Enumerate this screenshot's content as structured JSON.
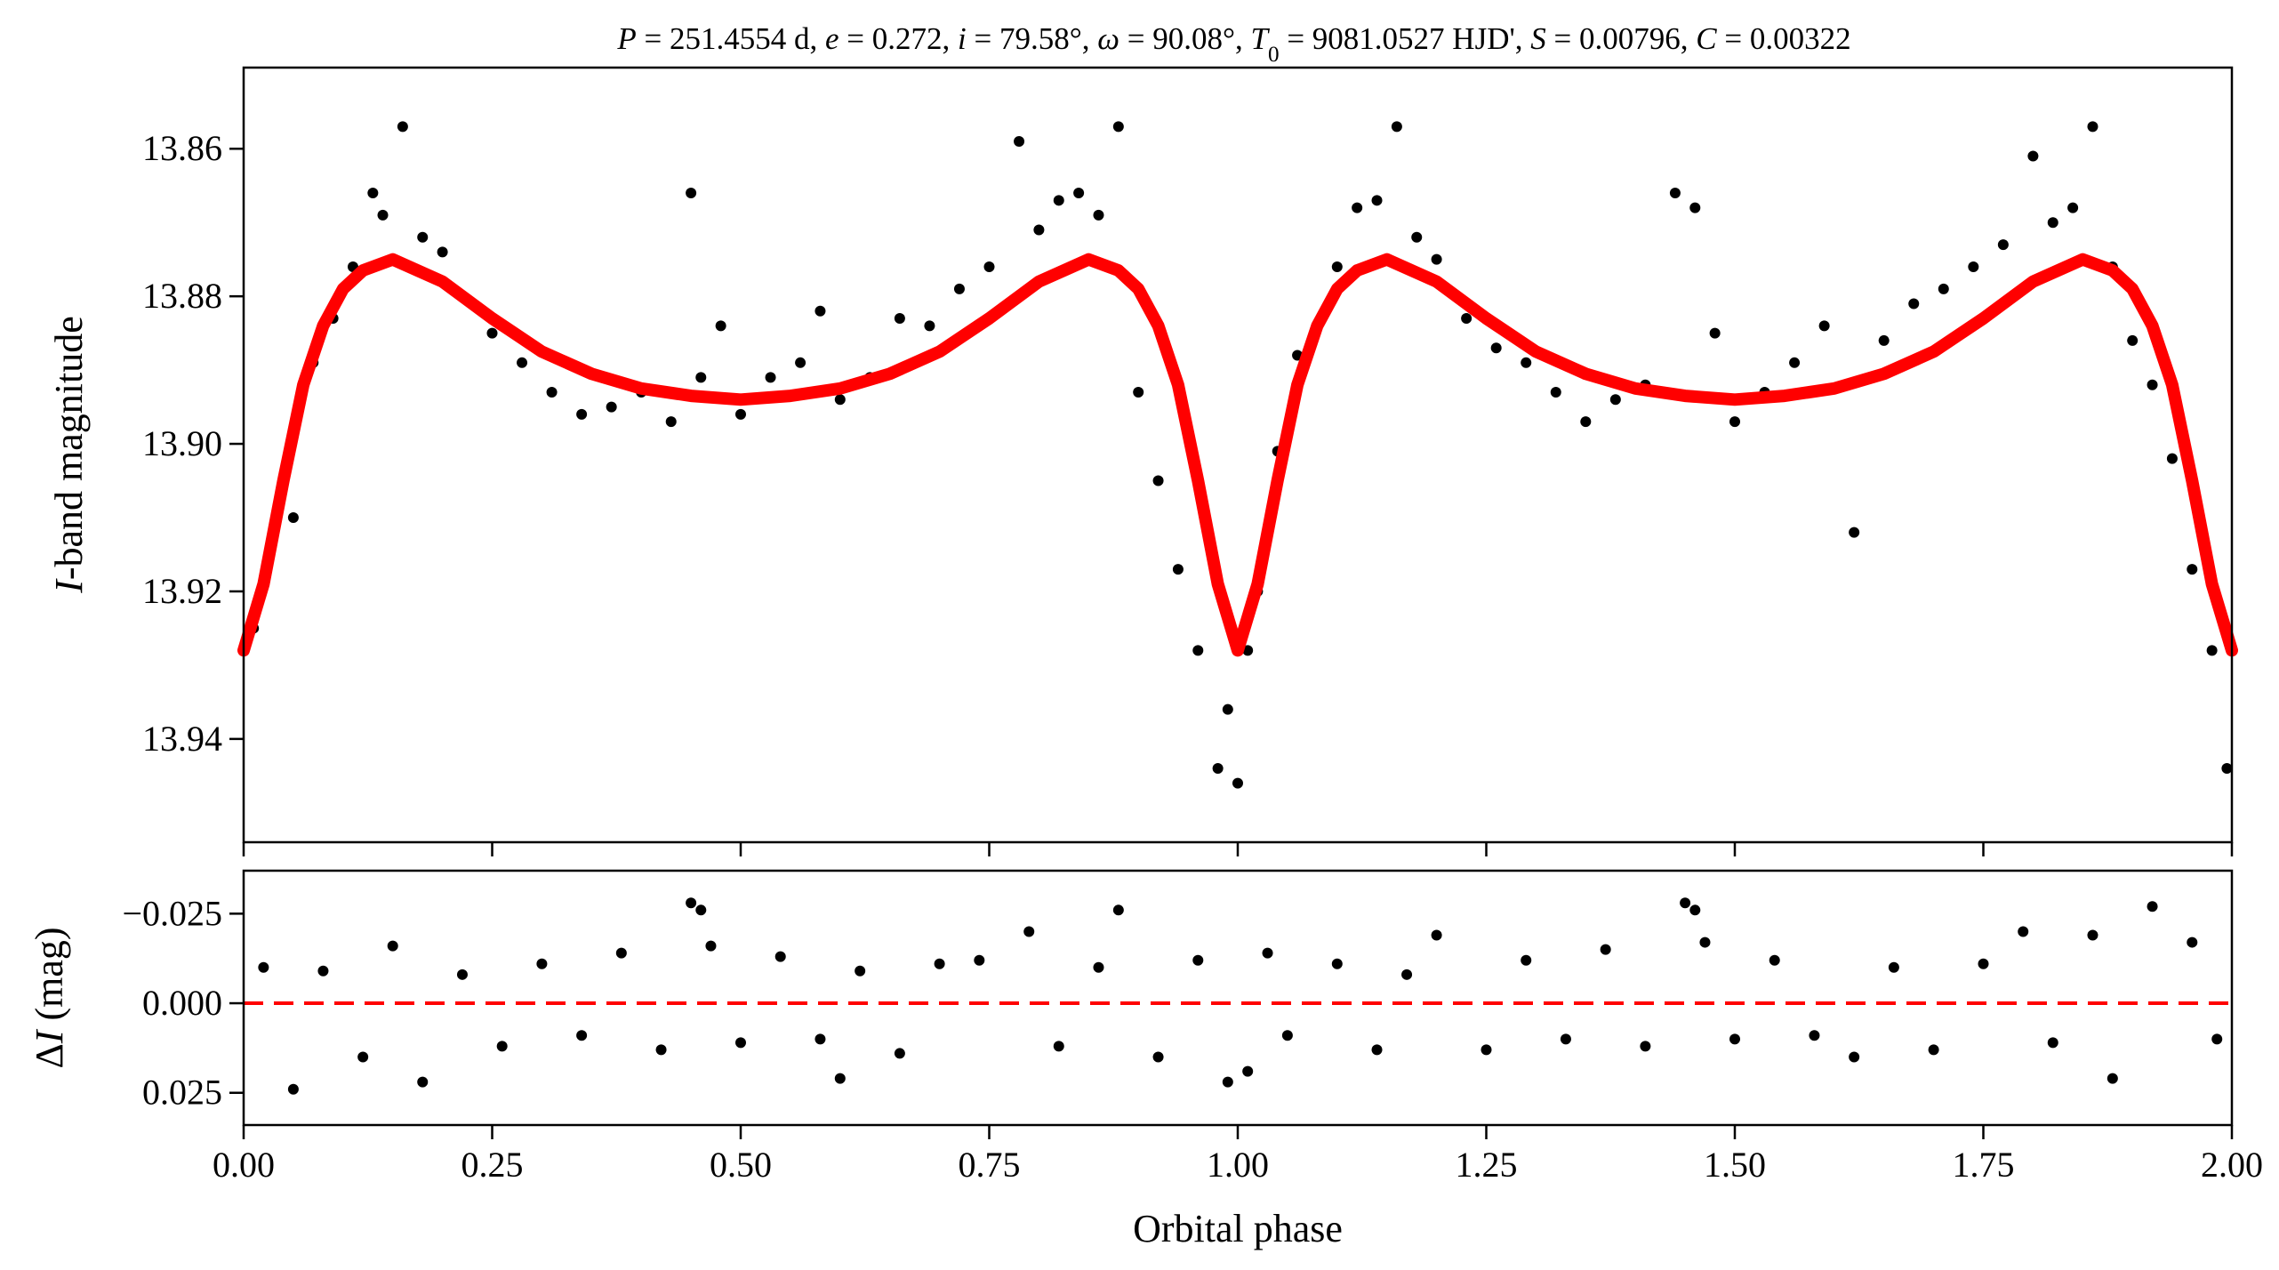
{
  "chart_data": [
    {
      "panel": "light-curve",
      "type": "scatter",
      "title": "P = 251.4554 d, e = 0.272, i = 79.58°, ω = 90.08°, T0 = 9081.0527 HJD', S = 0.00796, C = 0.00322",
      "title_parts": [
        {
          "text": "P",
          "style": "italic"
        },
        {
          "text": " = 251.4554 d, ",
          "style": "normal"
        },
        {
          "text": "e",
          "style": "italic"
        },
        {
          "text": " = 0.272, ",
          "style": "normal"
        },
        {
          "text": "i",
          "style": "italic"
        },
        {
          "text": " = 79.58°, ",
          "style": "normal"
        },
        {
          "text": "ω",
          "style": "italic"
        },
        {
          "text": " = 90.08°, ",
          "style": "normal"
        },
        {
          "text": "T",
          "style": "italic"
        },
        {
          "text": "0",
          "style": "sub"
        },
        {
          "text": " = 9081.0527 HJD', ",
          "style": "normal"
        },
        {
          "text": "S",
          "style": "italic"
        },
        {
          "text": " = 0.00796, ",
          "style": "normal"
        },
        {
          "text": "C",
          "style": "italic"
        },
        {
          "text": " = 0.00322",
          "style": "normal"
        }
      ],
      "ylabel": "I-band magnitude",
      "ylabel_parts": [
        {
          "text": "I",
          "style": "italic"
        },
        {
          "text": "-band magnitude",
          "style": "normal"
        }
      ],
      "xlabel": "",
      "xlim": [
        0.0,
        2.0
      ],
      "ylim": [
        13.954,
        13.849
      ],
      "y_inverted": true,
      "yticks": [
        13.86,
        13.88,
        13.9,
        13.92,
        13.94
      ],
      "ytick_labels": [
        "13.86",
        "13.88",
        "13.90",
        "13.92",
        "13.94"
      ],
      "grid": false,
      "model": {
        "color": "#ff0000",
        "x": [
          0.0,
          0.02,
          0.04,
          0.06,
          0.08,
          0.1,
          0.12,
          0.15,
          0.2,
          0.25,
          0.3,
          0.35,
          0.4,
          0.45,
          0.5,
          0.55,
          0.6,
          0.65,
          0.7,
          0.75,
          0.8,
          0.85,
          0.88,
          0.9,
          0.92,
          0.94,
          0.96,
          0.98,
          1.0,
          1.02,
          1.04,
          1.06,
          1.08,
          1.1,
          1.12,
          1.15,
          1.2,
          1.25,
          1.3,
          1.35,
          1.4,
          1.45,
          1.5,
          1.55,
          1.6,
          1.65,
          1.7,
          1.75,
          1.8,
          1.85,
          1.88,
          1.9,
          1.92,
          1.94,
          1.96,
          1.98,
          2.0
        ],
        "y": [
          13.928,
          13.919,
          13.905,
          13.892,
          13.884,
          13.879,
          13.8765,
          13.875,
          13.878,
          13.883,
          13.8875,
          13.8905,
          13.8925,
          13.8935,
          13.894,
          13.8935,
          13.8925,
          13.8905,
          13.8875,
          13.883,
          13.878,
          13.875,
          13.8765,
          13.879,
          13.884,
          13.892,
          13.905,
          13.919,
          13.928,
          13.919,
          13.905,
          13.892,
          13.884,
          13.879,
          13.8765,
          13.875,
          13.878,
          13.883,
          13.8875,
          13.8905,
          13.8925,
          13.8935,
          13.894,
          13.8935,
          13.8925,
          13.8905,
          13.8875,
          13.883,
          13.878,
          13.875,
          13.8765,
          13.879,
          13.884,
          13.892,
          13.905,
          13.919,
          13.928
        ]
      },
      "observations": {
        "color": "#000000",
        "x": [
          0.01,
          0.03,
          0.05,
          0.07,
          0.09,
          0.11,
          0.13,
          0.14,
          0.16,
          0.18,
          0.2,
          0.22,
          0.25,
          0.28,
          0.31,
          0.34,
          0.37,
          0.4,
          0.43,
          0.45,
          0.46,
          0.48,
          0.5,
          0.53,
          0.56,
          0.58,
          0.6,
          0.63,
          0.66,
          0.69,
          0.72,
          0.75,
          0.78,
          0.8,
          0.82,
          0.84,
          0.86,
          0.88,
          0.9,
          0.92,
          0.94,
          0.96,
          0.98,
          0.99,
          1.0,
          1.01,
          1.02,
          1.04,
          1.06,
          1.08,
          1.1,
          1.12,
          1.14,
          1.16,
          1.18,
          1.2,
          1.23,
          1.26,
          1.29,
          1.32,
          1.35,
          1.38,
          1.41,
          1.44,
          1.46,
          1.48,
          1.5,
          1.53,
          1.56,
          1.59,
          1.62,
          1.65,
          1.68,
          1.71,
          1.74,
          1.77,
          1.8,
          1.82,
          1.84,
          1.86,
          1.88,
          1.9,
          1.92,
          1.94,
          1.96,
          1.98,
          1.995
        ],
        "y": [
          13.925,
          13.912,
          13.91,
          13.889,
          13.883,
          13.876,
          13.866,
          13.869,
          13.857,
          13.872,
          13.874,
          13.88,
          13.885,
          13.889,
          13.893,
          13.896,
          13.895,
          13.893,
          13.897,
          13.866,
          13.891,
          13.884,
          13.896,
          13.891,
          13.889,
          13.882,
          13.894,
          13.891,
          13.883,
          13.884,
          13.879,
          13.876,
          13.859,
          13.871,
          13.867,
          13.866,
          13.869,
          13.857,
          13.893,
          13.905,
          13.917,
          13.928,
          13.944,
          13.936,
          13.946,
          13.928,
          13.92,
          13.901,
          13.888,
          13.884,
          13.876,
          13.868,
          13.867,
          13.857,
          13.872,
          13.875,
          13.883,
          13.887,
          13.889,
          13.893,
          13.897,
          13.894,
          13.892,
          13.866,
          13.868,
          13.885,
          13.897,
          13.893,
          13.889,
          13.884,
          13.912,
          13.886,
          13.881,
          13.879,
          13.876,
          13.873,
          13.861,
          13.87,
          13.868,
          13.857,
          13.876,
          13.886,
          13.892,
          13.902,
          13.917,
          13.928,
          13.944
        ]
      }
    },
    {
      "panel": "residuals",
      "type": "scatter",
      "title": "",
      "ylabel": "ΔI (mag)",
      "ylabel_parts": [
        {
          "text": "Δ",
          "style": "normal"
        },
        {
          "text": "I",
          "style": "italic"
        },
        {
          "text": " (mag)",
          "style": "normal"
        }
      ],
      "xlabel": "Orbital phase",
      "xlim": [
        0.0,
        2.0
      ],
      "ylim": [
        0.034,
        -0.037
      ],
      "y_inverted": true,
      "yticks": [
        -0.025,
        0.0,
        0.025
      ],
      "ytick_labels": [
        "−0.025",
        "0.000",
        "0.025"
      ],
      "xticks": [
        0.0,
        0.25,
        0.5,
        0.75,
        1.0,
        1.25,
        1.5,
        1.75,
        2.0
      ],
      "xtick_labels": [
        "0.00",
        "0.25",
        "0.50",
        "0.75",
        "1.00",
        "1.25",
        "1.50",
        "1.75",
        "2.00"
      ],
      "grid": false,
      "reference_line": {
        "y": 0.0,
        "color": "#ff0000",
        "style": "dashed"
      },
      "residuals": {
        "color": "#000000",
        "x": [
          0.02,
          0.05,
          0.08,
          0.12,
          0.15,
          0.18,
          0.22,
          0.26,
          0.3,
          0.34,
          0.38,
          0.42,
          0.45,
          0.46,
          0.47,
          0.5,
          0.54,
          0.58,
          0.6,
          0.62,
          0.66,
          0.7,
          0.74,
          0.79,
          0.82,
          0.86,
          0.88,
          0.92,
          0.96,
          0.99,
          1.01,
          1.03,
          1.05,
          1.1,
          1.14,
          1.17,
          1.2,
          1.25,
          1.29,
          1.33,
          1.37,
          1.41,
          1.45,
          1.46,
          1.47,
          1.5,
          1.54,
          1.58,
          1.62,
          1.66,
          1.7,
          1.75,
          1.79,
          1.82,
          1.86,
          1.88,
          1.92,
          1.96,
          1.985
        ],
        "y": [
          -0.01,
          0.024,
          -0.009,
          0.015,
          -0.016,
          0.022,
          -0.008,
          0.012,
          -0.011,
          0.009,
          -0.014,
          0.013,
          -0.028,
          -0.026,
          -0.016,
          0.011,
          -0.013,
          0.01,
          0.021,
          -0.009,
          0.014,
          -0.011,
          -0.012,
          -0.02,
          0.012,
          -0.01,
          -0.026,
          0.015,
          -0.012,
          0.022,
          0.019,
          -0.014,
          0.009,
          -0.011,
          0.013,
          -0.008,
          -0.019,
          0.013,
          -0.012,
          0.01,
          -0.015,
          0.012,
          -0.028,
          -0.026,
          -0.017,
          0.01,
          -0.012,
          0.009,
          0.015,
          -0.01,
          0.013,
          -0.011,
          -0.02,
          0.011,
          -0.019,
          0.021,
          -0.027,
          -0.017,
          0.01
        ]
      }
    }
  ]
}
